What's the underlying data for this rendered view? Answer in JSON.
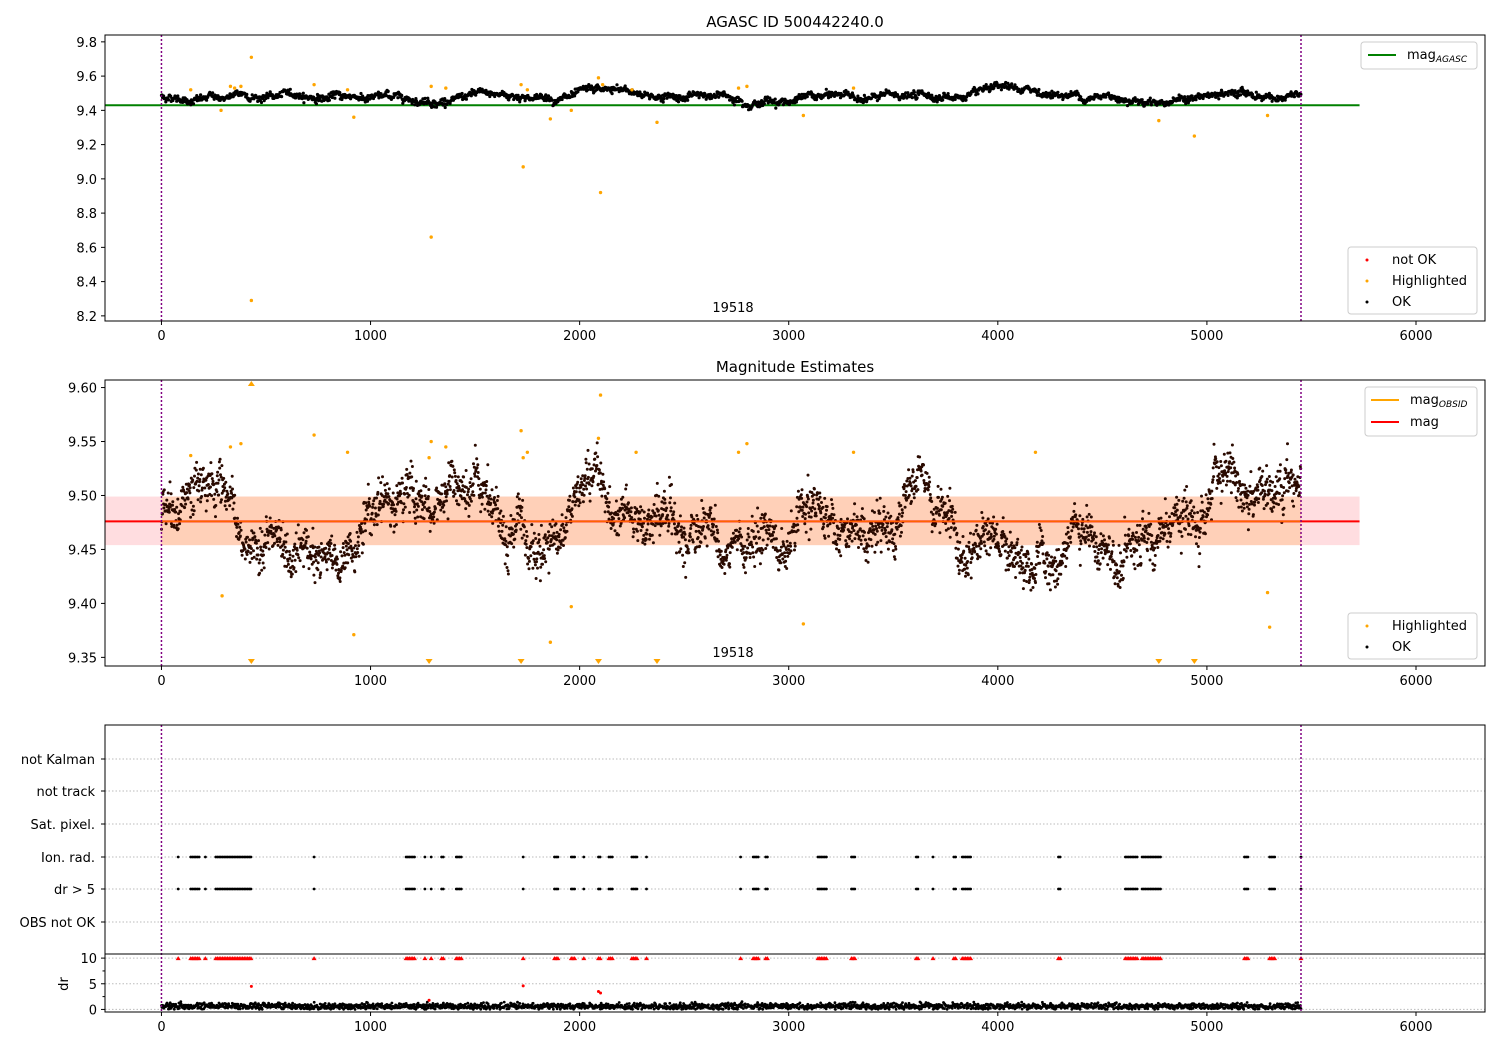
{
  "chart_data": [
    {
      "type": "scatter",
      "title": "AGASC ID 500442240.0",
      "xlim": [
        -270,
        6330
      ],
      "ylim": [
        8.17,
        9.84
      ],
      "x_ticks": [
        "0",
        "1000",
        "2000",
        "3000",
        "4000",
        "5000",
        "6000"
      ],
      "y_ticks": [
        "8.2",
        "8.4",
        "8.6",
        "8.8",
        "9.0",
        "9.2",
        "9.4",
        "9.6",
        "9.8"
      ],
      "obsid_label": "19518",
      "obsid_label_x": 2730,
      "obsid_bounds": [
        0,
        5450
      ],
      "mag_agasc": 9.43,
      "mag_agasc_xrange": [
        -270,
        5730
      ],
      "ok_baseline": 9.48,
      "highlighted_points": [
        [
          140,
          9.52
        ],
        [
          285,
          9.4
        ],
        [
          330,
          9.54
        ],
        [
          350,
          9.53
        ],
        [
          380,
          9.54
        ],
        [
          430,
          9.71
        ],
        [
          430,
          8.29
        ],
        [
          730,
          9.55
        ],
        [
          890,
          9.52
        ],
        [
          920,
          9.36
        ],
        [
          1290,
          9.54
        ],
        [
          1290,
          8.66
        ],
        [
          1360,
          9.53
        ],
        [
          1720,
          9.55
        ],
        [
          1730,
          9.07
        ],
        [
          1750,
          9.52
        ],
        [
          1860,
          9.35
        ],
        [
          1960,
          9.4
        ],
        [
          2090,
          9.59
        ],
        [
          2100,
          8.92
        ],
        [
          2110,
          9.55
        ],
        [
          2250,
          9.52
        ],
        [
          2370,
          9.33
        ],
        [
          2760,
          9.53
        ],
        [
          2800,
          9.54
        ],
        [
          3070,
          9.37
        ],
        [
          3310,
          9.53
        ],
        [
          4770,
          9.34
        ],
        [
          4940,
          9.25
        ],
        [
          5290,
          9.37
        ]
      ],
      "colors": {
        "ok": "#000000",
        "highlighted": "#ffa500",
        "not_ok": "#ff0000",
        "mag_agasc": "#008000",
        "bounds": "#800080"
      },
      "legend_top": {
        "mag_agasc_main": "mag",
        "mag_agasc_sub": "AGASC"
      },
      "legend_bottom": {
        "not_ok": "not OK",
        "highlighted": "Highlighted",
        "ok": "OK"
      }
    },
    {
      "type": "scatter",
      "title": "Magnitude Estimates",
      "xlim": [
        -270,
        6330
      ],
      "ylim": [
        9.342,
        9.607
      ],
      "x_ticks": [
        "0",
        "1000",
        "2000",
        "3000",
        "4000",
        "5000",
        "6000"
      ],
      "y_ticks": [
        "9.35",
        "9.40",
        "9.45",
        "9.50",
        "9.55",
        "9.60"
      ],
      "obsid_label": "19518",
      "obsid_label_x": 2730,
      "obsid_bounds": [
        0,
        5450
      ],
      "mag": 9.476,
      "mag_band": [
        9.454,
        9.499
      ],
      "mag_xrange": [
        -270,
        5730
      ],
      "highlighted_points": [
        [
          140,
          9.537
        ],
        [
          290,
          9.407
        ],
        [
          330,
          9.545
        ],
        [
          380,
          9.548
        ],
        [
          730,
          9.556
        ],
        [
          890,
          9.54
        ],
        [
          920,
          9.371
        ],
        [
          1280,
          9.535
        ],
        [
          1290,
          9.55
        ],
        [
          1360,
          9.545
        ],
        [
          1720,
          9.56
        ],
        [
          1730,
          9.535
        ],
        [
          1750,
          9.54
        ],
        [
          1860,
          9.364
        ],
        [
          1960,
          9.397
        ],
        [
          2090,
          9.553
        ],
        [
          2100,
          9.593
        ],
        [
          2270,
          9.54
        ],
        [
          2760,
          9.54
        ],
        [
          2800,
          9.548
        ],
        [
          3070,
          9.381
        ],
        [
          3310,
          9.54
        ],
        [
          4180,
          9.54
        ],
        [
          5290,
          9.41
        ],
        [
          5300,
          9.378
        ]
      ],
      "clipped_markers_x": [
        430,
        1280,
        1720,
        2090,
        2370,
        4770,
        4940
      ],
      "clipped_top_x": [
        430
      ],
      "colors": {
        "ok": "#000000",
        "highlighted": "#ffa500",
        "mag_obsid": "#ffa500",
        "mag": "#ff0000",
        "band": "#f8c8c8",
        "bounds": "#800080"
      },
      "legend_top": {
        "mag_obsid_main": "mag",
        "mag_obsid_sub": "OBSID",
        "mag": "mag"
      },
      "legend_bottom": {
        "highlighted": "Highlighted",
        "ok": "OK"
      }
    },
    {
      "type": "scatter",
      "title": "",
      "xlim": [
        -270,
        6330
      ],
      "x_ticks": [
        "0",
        "1000",
        "2000",
        "3000",
        "4000",
        "5000",
        "6000"
      ],
      "flag_rows": [
        "not Kalman",
        "not track",
        "Sat. pixel.",
        "Ion. rad.",
        "dr > 5",
        "OBS not OK"
      ],
      "flag_clusters": [
        [
          80,
          80
        ],
        [
          140,
          180
        ],
        [
          210,
          210
        ],
        [
          260,
          430
        ],
        [
          730,
          730
        ],
        [
          1170,
          1210
        ],
        [
          1260,
          1260
        ],
        [
          1290,
          1290
        ],
        [
          1340,
          1350
        ],
        [
          1410,
          1440
        ],
        [
          1730,
          1730
        ],
        [
          1880,
          1900
        ],
        [
          1960,
          1980
        ],
        [
          2020,
          2020
        ],
        [
          2090,
          2100
        ],
        [
          2140,
          2160
        ],
        [
          2250,
          2280
        ],
        [
          2320,
          2320
        ],
        [
          2770,
          2770
        ],
        [
          2830,
          2860
        ],
        [
          2890,
          2900
        ],
        [
          3140,
          3180
        ],
        [
          3300,
          3320
        ],
        [
          3610,
          3620
        ],
        [
          3690,
          3690
        ],
        [
          3790,
          3800
        ],
        [
          3830,
          3870
        ],
        [
          4290,
          4300
        ],
        [
          4610,
          4670
        ],
        [
          4690,
          4780
        ],
        [
          5180,
          5200
        ],
        [
          5300,
          5330
        ],
        [
          5450,
          5450
        ]
      ],
      "flag_active_rows": [
        "Ion. rad.",
        "dr > 5"
      ],
      "dr_ylabel": "dr",
      "dr_ylim": [
        -0.5,
        10.8
      ],
      "dr_ticks": [
        "0",
        "5",
        "10"
      ],
      "dr_highlights": [
        [
          430,
          4.5
        ],
        [
          1730,
          4.6
        ],
        [
          2090,
          3.5
        ],
        [
          2100,
          3.2
        ],
        [
          1280,
          1.8
        ]
      ],
      "obsid_bounds": [
        0,
        5450
      ],
      "colors": {
        "ok": "#000000",
        "flag": "#000000",
        "clipped": "#ff0000",
        "bounds": "#800080",
        "grid": "#bbbbbb"
      }
    }
  ]
}
